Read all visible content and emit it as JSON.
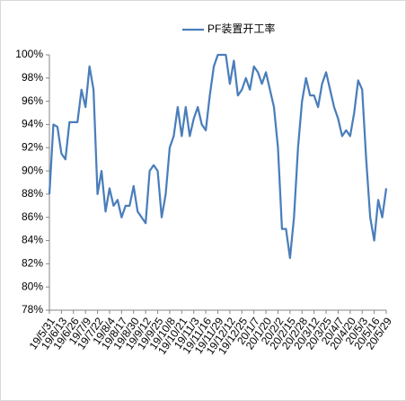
{
  "chart_data": {
    "type": "line",
    "categories": [
      "19/5/31",
      null,
      null,
      "19/6/13",
      null,
      null,
      "19/6/26",
      null,
      null,
      "19/7/9",
      null,
      null,
      "19/7/22",
      null,
      null,
      "19/8/4",
      null,
      null,
      "19/8/17",
      null,
      null,
      "19/8/30",
      null,
      null,
      "19/9/12",
      null,
      null,
      "19/9/25",
      null,
      null,
      "19/10/8",
      null,
      null,
      "19/10/21",
      null,
      null,
      "19/11/3",
      null,
      null,
      "19/11/16",
      null,
      null,
      "19/11/29",
      null,
      null,
      "19/12/12",
      null,
      null,
      "19/12/25",
      null,
      null,
      "20/1/7",
      null,
      null,
      "20/1/20",
      null,
      null,
      "20/2/2",
      null,
      null,
      "20/2/15",
      null,
      null,
      "20/2/28",
      null,
      null,
      "20/3/12",
      null,
      null,
      "20/3/25",
      null,
      null,
      "20/4/7",
      null,
      null,
      "20/4/20",
      null,
      null,
      "20/5/3",
      null,
      null,
      "20/5/16",
      null,
      null,
      "20/5/29"
    ],
    "series": [
      {
        "name": "PF装置开工率",
        "color": "#4a7ebb",
        "values": [
          88,
          94,
          93.8,
          91.5,
          91,
          94.2,
          94.2,
          94.2,
          97,
          95.5,
          99,
          97,
          88,
          90,
          86.5,
          88.5,
          87,
          87.5,
          86,
          87,
          87,
          88.7,
          86.5,
          86,
          85.5,
          90,
          90.5,
          90,
          86,
          88,
          92,
          93,
          95.5,
          93,
          95.5,
          93,
          94.5,
          95.5,
          94,
          93.5,
          96.5,
          99,
          100,
          100,
          100,
          97.5,
          99.5,
          96.5,
          97,
          98,
          97,
          99,
          98.5,
          97.5,
          98.5,
          97,
          95.5,
          92,
          85,
          85,
          82.5,
          86,
          92,
          96,
          98,
          96.5,
          96.5,
          95.5,
          97.5,
          98.5,
          97,
          95.5,
          94.5,
          93,
          93.5,
          93,
          95,
          97.8,
          97,
          91,
          86,
          84,
          87.5,
          86,
          88.5
        ]
      }
    ],
    "ylim": [
      78,
      100
    ],
    "yticks": [
      {
        "value": 78,
        "label": "78%"
      },
      {
        "value": 80,
        "label": "80%"
      },
      {
        "value": 82,
        "label": "82%"
      },
      {
        "value": 84,
        "label": "84%"
      },
      {
        "value": 86,
        "label": "86%"
      },
      {
        "value": 88,
        "label": "88%"
      },
      {
        "value": 90,
        "label": "90%"
      },
      {
        "value": 92,
        "label": "92%"
      },
      {
        "value": 94,
        "label": "94%"
      },
      {
        "value": 96,
        "label": "96%"
      },
      {
        "value": 98,
        "label": "98%"
      },
      {
        "value": 100,
        "label": "100%"
      }
    ],
    "grid": false,
    "legend": "top"
  }
}
